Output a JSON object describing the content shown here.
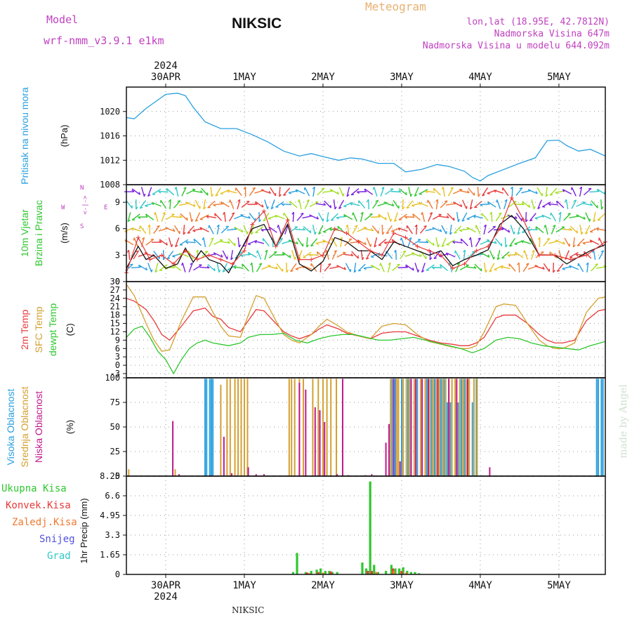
{
  "header": {
    "model_label": "Model",
    "model_name": "wrf-nmm_v3.9.1  e1km",
    "title": "NIKSIC",
    "meteogram": "Meteogram",
    "coords": "lon,lat (18.95E, 42.7812N)",
    "elevation": "Nadmorska Visina 647m",
    "model_elevation": "Nadmorska Visina u modelu 644.092m",
    "watermark": "made by Angel",
    "footer": "NIKSIC"
  },
  "colors": {
    "pressure": "#2aa0e0",
    "temp2m": "#e83a3a",
    "sfc": "#d4a030",
    "dewpt": "#2ec72e",
    "high": "#2aa0e0",
    "mid": "#d4a030",
    "low": "#c0188c",
    "total": "#2ec72e",
    "conv": "#e83a3a",
    "frozen": "#f07a30",
    "snow": "#5050e0",
    "grad": "#30c8c8",
    "magenta": "#c040c0"
  },
  "chart_data": [
    {
      "type": "line",
      "panel": "pressure",
      "ylabel": [
        "Pritisak na nivou mora",
        "(hPa)"
      ],
      "ylim": [
        1008,
        1024
      ],
      "yticks": [
        1008,
        1012,
        1016,
        1020
      ],
      "x_range": [
        0,
        6.09
      ],
      "top_axis": {
        "year": "2024",
        "labels": [
          "30APR",
          "1MAY",
          "2MAY",
          "3MAY",
          "4MAY",
          "5MAY"
        ],
        "positions": [
          0.5,
          1.5,
          2.5,
          3.5,
          4.5,
          5.5
        ]
      },
      "grid": true,
      "series": [
        {
          "key": "pressure",
          "x": [
            0,
            0.1,
            0.25,
            0.5,
            0.65,
            0.75,
            0.85,
            1.0,
            1.2,
            1.4,
            1.6,
            1.8,
            2.0,
            2.2,
            2.35,
            2.5,
            2.7,
            2.85,
            3.0,
            3.2,
            3.4,
            3.55,
            3.75,
            3.95,
            4.1,
            4.3,
            4.4,
            4.5,
            4.6,
            4.8,
            5.0,
            5.2,
            5.35,
            5.5,
            5.6,
            5.75,
            5.9,
            6.09
          ],
          "y": [
            1019,
            1018.8,
            1020.5,
            1022.8,
            1023,
            1022.6,
            1020.7,
            1018.3,
            1017.2,
            1017.2,
            1016.2,
            1015,
            1013.5,
            1012.7,
            1013.1,
            1012.6,
            1012,
            1012.4,
            1012.2,
            1011.5,
            1011.5,
            1010.1,
            1010.5,
            1011.3,
            1011,
            1010.2,
            1009.2,
            1008.6,
            1009.5,
            1010.5,
            1011.5,
            1012.4,
            1015.2,
            1015.3,
            1014.4,
            1013.5,
            1013.8,
            1012.7
          ]
        }
      ]
    },
    {
      "type": "line",
      "panel": "wind",
      "ylabel": [
        "10m Vjetar",
        "Brzina i Pravac",
        "(m/s)"
      ],
      "ylim": [
        0,
        11
      ],
      "yticks": [
        0,
        3,
        6,
        9
      ],
      "compass": [
        "W",
        "<",
        "-",
        "|",
        "-",
        ">",
        "E",
        "N",
        "^",
        "v",
        "S"
      ],
      "series": [
        {
          "key": "speed_mean",
          "x": [
            0,
            0.15,
            0.25,
            0.35,
            0.5,
            0.65,
            0.75,
            0.85,
            0.95,
            1.05,
            1.2,
            1.3,
            1.45,
            1.6,
            1.75,
            1.9,
            2.05,
            2.2,
            2.35,
            2.5,
            2.65,
            2.8,
            2.95,
            3.1,
            3.25,
            3.4,
            3.55,
            3.7,
            3.85,
            4.0,
            4.15,
            4.3,
            4.45,
            4.6,
            4.75,
            4.9,
            5.05,
            5.25,
            5.45,
            5.6,
            5.75,
            5.9,
            6.09
          ],
          "y": [
            1.5,
            4,
            2.5,
            3,
            1.5,
            2,
            3.8,
            2.2,
            3.5,
            2.5,
            2,
            1,
            3.5,
            6,
            6.5,
            4,
            6.5,
            2,
            1.2,
            2.3,
            5,
            4.5,
            3.5,
            3.5,
            2.5,
            4.5,
            4,
            3.5,
            3,
            3.5,
            1.8,
            2.5,
            3,
            3.6,
            6.5,
            7.5,
            6,
            3,
            3,
            2,
            2.8,
            3.5,
            4.2
          ]
        },
        {
          "key": "speed_max",
          "x": [
            0,
            0.15,
            0.3,
            0.45,
            0.6,
            0.75,
            0.9,
            1.05,
            1.2,
            1.35,
            1.5,
            1.6,
            1.75,
            1.9,
            2.05,
            2.2,
            2.35,
            2.5,
            2.65,
            2.8,
            2.95,
            3.1,
            3.25,
            3.4,
            3.55,
            3.7,
            3.85,
            4.0,
            4.15,
            4.3,
            4.45,
            4.6,
            4.75,
            4.9,
            5.05,
            5.25,
            5.45,
            5.65,
            5.85,
            6.09
          ],
          "y": [
            1,
            5,
            2.5,
            3,
            2,
            3.5,
            2.5,
            3,
            2.5,
            2,
            3.5,
            6.5,
            8,
            4,
            7,
            2.5,
            2.5,
            3,
            6,
            5.5,
            4.5,
            3.5,
            3,
            5.5,
            5,
            4,
            3.5,
            3,
            1.5,
            2,
            3.5,
            4,
            6,
            9.5,
            7,
            3,
            3,
            2.5,
            3,
            4.5
          ]
        }
      ]
    },
    {
      "type": "line",
      "panel": "temperature",
      "ylabel": [
        "2m Temp",
        "SFC Temp",
        "dewpt Temp",
        "(C)"
      ],
      "ylim": [
        -4.5,
        30
      ],
      "yticks": [
        -3,
        0,
        3,
        6,
        9,
        12,
        15,
        18,
        21,
        24,
        27,
        30
      ],
      "series": [
        {
          "key": "temp2m",
          "x": [
            0,
            0.1,
            0.25,
            0.35,
            0.45,
            0.55,
            0.7,
            0.85,
            1.0,
            1.1,
            1.2,
            1.3,
            1.45,
            1.55,
            1.65,
            1.75,
            1.9,
            2.0,
            2.1,
            2.2,
            2.35,
            2.45,
            2.55,
            2.7,
            2.8,
            2.95,
            3.1,
            3.25,
            3.4,
            3.55,
            3.7,
            3.85,
            4.0,
            4.15,
            4.25,
            4.35,
            4.45,
            4.55,
            4.7,
            4.8,
            4.95,
            5.1,
            5.25,
            5.35,
            5.45,
            5.55,
            5.7,
            5.85,
            6.0,
            6.09
          ],
          "y": [
            24,
            23,
            20,
            16,
            11,
            9,
            14,
            19.5,
            20.5,
            17.5,
            16.5,
            13.5,
            12,
            16,
            20,
            19.5,
            15,
            12,
            10.5,
            9.5,
            11,
            13,
            14.5,
            13,
            11.5,
            10.5,
            9.5,
            11.5,
            12,
            12,
            10.5,
            9,
            8,
            7.5,
            7,
            7,
            8,
            10,
            17,
            18,
            18,
            15,
            11,
            9,
            8,
            8,
            9,
            16,
            19.5,
            20
          ]
        },
        {
          "key": "sfc",
          "x": [
            0,
            0.1,
            0.25,
            0.35,
            0.45,
            0.55,
            0.7,
            0.85,
            1.0,
            1.1,
            1.2,
            1.3,
            1.45,
            1.55,
            1.65,
            1.75,
            1.9,
            2.0,
            2.1,
            2.2,
            2.35,
            2.45,
            2.55,
            2.7,
            2.8,
            2.95,
            3.1,
            3.25,
            3.4,
            3.55,
            3.7,
            3.85,
            4.0,
            4.15,
            4.25,
            4.35,
            4.45,
            4.55,
            4.7,
            4.8,
            4.95,
            5.1,
            5.25,
            5.35,
            5.45,
            5.55,
            5.7,
            5.85,
            6.0,
            6.09
          ],
          "y": [
            29,
            25,
            15,
            9,
            5,
            5.5,
            16,
            24.5,
            24.5,
            19,
            14,
            10.5,
            10,
            18,
            25,
            24,
            16,
            11,
            9,
            8,
            11,
            14,
            16.5,
            14,
            12,
            10.5,
            9.5,
            14,
            15,
            14.5,
            11,
            8.5,
            7.5,
            6.5,
            6,
            6,
            7,
            12,
            21,
            22,
            21.5,
            15,
            9,
            7,
            6,
            6,
            8,
            19,
            24,
            24.5
          ]
        },
        {
          "key": "dewpt",
          "x": [
            0,
            0.1,
            0.2,
            0.3,
            0.4,
            0.5,
            0.6,
            0.7,
            0.8,
            0.9,
            1.0,
            1.1,
            1.2,
            1.3,
            1.45,
            1.55,
            1.7,
            1.85,
            2.0,
            2.15,
            2.3,
            2.45,
            2.6,
            2.75,
            2.9,
            3.05,
            3.2,
            3.35,
            3.5,
            3.65,
            3.8,
            3.95,
            4.1,
            4.25,
            4.4,
            4.55,
            4.7,
            4.85,
            5.0,
            5.15,
            5.3,
            5.45,
            5.6,
            5.75,
            5.9,
            6.09
          ],
          "y": [
            10,
            13,
            14,
            10,
            5,
            2,
            -3,
            2,
            6,
            8,
            9,
            8,
            7.5,
            7,
            8,
            10,
            11,
            11,
            11.5,
            9,
            8,
            9.5,
            10.5,
            11,
            11,
            10,
            9,
            9,
            9.5,
            10,
            9,
            8,
            7,
            6,
            4.5,
            6,
            9,
            10,
            9.5,
            8,
            7,
            6.5,
            6,
            5.5,
            7,
            8.5
          ]
        }
      ]
    },
    {
      "type": "bar",
      "panel": "cloud",
      "ylabel": [
        "Visoka Oblacnost",
        "Srednja Oblacnost",
        "Niska Oblacnost",
        "(%)"
      ],
      "ylim": [
        0,
        100
      ],
      "yticks": [
        0,
        25,
        50,
        75,
        100
      ],
      "series": [
        {
          "key": "high",
          "x": [
            1.0,
            1.02,
            1.06,
            1.08,
            1.1,
            3.38,
            3.42,
            3.5,
            3.58,
            3.62,
            3.7,
            3.82,
            3.88,
            3.92,
            3.96,
            4.0,
            4.04,
            4.08,
            4.12,
            4.2,
            4.22,
            4.26,
            4.3,
            4.4,
            4.45,
            5.98,
            6.0,
            6.04,
            6.06
          ],
          "y": [
            99,
            99,
            99,
            99,
            99,
            99,
            99,
            99,
            99,
            99,
            99,
            99,
            99,
            99,
            99,
            99,
            99,
            75,
            75,
            75,
            75,
            99,
            99,
            75,
            99,
            99,
            99,
            99,
            99
          ]
        },
        {
          "key": "mid",
          "x": [
            0.03,
            0.62,
            1.2,
            1.28,
            1.32,
            1.38,
            1.42,
            1.46,
            1.5,
            1.54,
            2.07,
            2.1,
            2.14,
            2.2,
            2.25,
            2.37,
            2.44,
            2.5,
            2.55,
            2.6,
            2.67,
            3.36,
            3.44,
            3.46,
            3.52,
            3.56,
            3.6,
            3.66,
            3.74,
            3.8,
            3.86,
            3.9,
            3.94,
            3.98,
            4.02,
            4.06,
            4.1,
            4.14,
            4.18,
            4.24,
            4.28,
            4.32,
            4.36,
            4.42,
            4.46
          ],
          "y": [
            7,
            7,
            93,
            99,
            99,
            99,
            99,
            99,
            99,
            99,
            99,
            99,
            99,
            99,
            99,
            99,
            99,
            99,
            99,
            99,
            99,
            99,
            99,
            99,
            99,
            99,
            99,
            99,
            99,
            99,
            99,
            99,
            99,
            99,
            99,
            99,
            99,
            99,
            99,
            99,
            99,
            99,
            99,
            99,
            99
          ]
        },
        {
          "key": "low",
          "x": [
            0.59,
            0.67,
            1.06,
            1.24,
            1.34,
            1.55,
            1.65,
            1.75,
            2.2,
            2.28,
            2.4,
            2.46,
            2.52,
            2.68,
            2.75,
            2.82,
            3.04,
            3.12,
            3.3,
            3.34,
            3.4,
            3.48,
            3.62,
            3.68,
            3.76,
            3.84,
            3.96,
            4.1,
            4.2,
            4.34,
            4.62
          ],
          "y": [
            56,
            2,
            1,
            40,
            3,
            9,
            2,
            2,
            95,
            88,
            70,
            67,
            55,
            2,
            99,
            1,
            1,
            2,
            34,
            53,
            99,
            15,
            99,
            99,
            99,
            99,
            99,
            99,
            99,
            99,
            9
          ]
        }
      ]
    },
    {
      "type": "bar",
      "panel": "precip",
      "ylabel": [
        "1hr Precip (mm)"
      ],
      "legend": [
        "Ukupna Kisa",
        "Konvek.Kisa",
        "Zaledj.Kisa",
        "Snijeg",
        "Grad"
      ],
      "ylim": [
        0,
        8.25
      ],
      "yticks": [
        0,
        1.65,
        3.3,
        4.95,
        6.6,
        8.25
      ],
      "bottom_axis": {
        "labels": [
          "30APR",
          "1MAY",
          "2MAY",
          "3MAY",
          "4MAY",
          "5MAY"
        ],
        "year": "2024"
      },
      "series": [
        {
          "key": "total",
          "x": [
            2.12,
            2.17,
            2.28,
            2.35,
            2.42,
            2.47,
            2.53,
            2.58,
            2.62,
            2.68,
            3.0,
            3.05,
            3.1,
            3.15,
            3.2,
            3.3,
            3.37,
            3.42,
            3.47,
            3.52,
            3.57,
            3.62,
            3.67,
            3.72
          ],
          "y": [
            0.2,
            1.8,
            0.2,
            0.3,
            0.4,
            0.5,
            0.3,
            0.3,
            0.2,
            0.2,
            1.0,
            0.5,
            7.8,
            0.8,
            0.2,
            0.3,
            0.8,
            0.5,
            0.5,
            0.6,
            0.3,
            0.2,
            0.2,
            0.1
          ]
        },
        {
          "key": "conv",
          "x": [
            2.3,
            2.44,
            2.6,
            3.07,
            3.12,
            3.39,
            3.5
          ],
          "y": [
            0.15,
            0.2,
            0.25,
            0.3,
            0.3,
            0.5,
            0.3
          ]
        },
        {
          "key": "frozen",
          "x": [
            2.33,
            2.5,
            3.18,
            3.4,
            3.56
          ],
          "y": [
            0.1,
            0.15,
            0.2,
            0.3,
            0.15
          ]
        }
      ]
    }
  ]
}
